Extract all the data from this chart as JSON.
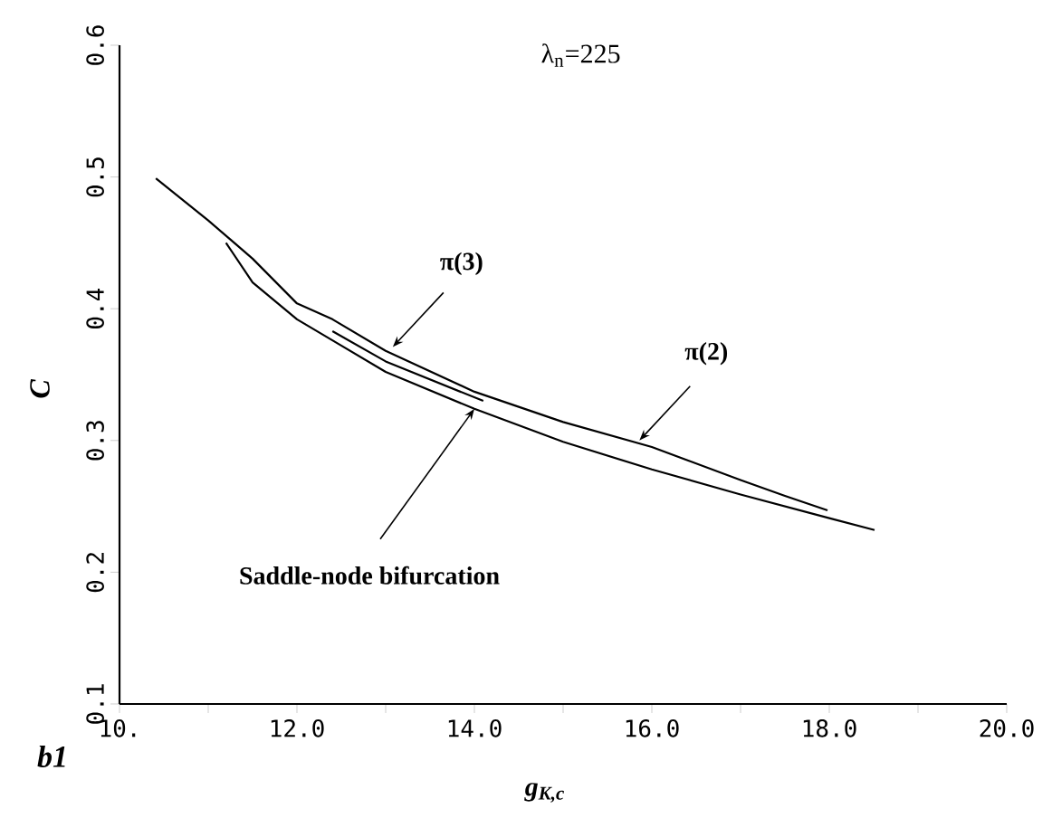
{
  "chart_data": {
    "type": "line",
    "title": "λ$_{n}$=225",
    "xlabel": "g$_{K,c}$",
    "ylabel": "C",
    "xlim": [
      10,
      20
    ],
    "ylim": [
      0.1,
      0.6
    ],
    "xticks": [
      {
        "value": 10,
        "label": "10."
      },
      {
        "value": 11,
        "label": null
      },
      {
        "value": 12,
        "label": "12.0"
      },
      {
        "value": 13,
        "label": null
      },
      {
        "value": 14,
        "label": "14.0"
      },
      {
        "value": 15,
        "label": null
      },
      {
        "value": 16,
        "label": "16.0"
      },
      {
        "value": 17,
        "label": null
      },
      {
        "value": 18,
        "label": "18.0"
      },
      {
        "value": 19,
        "label": null
      },
      {
        "value": 20,
        "label": "20.0"
      }
    ],
    "yticks": [
      0.1,
      0.2,
      0.3,
      0.4,
      0.5,
      0.6
    ],
    "grid": false,
    "marker": "none",
    "line_style": "solid",
    "series": [
      {
        "color": "#000000",
        "x": [
          10.41,
          11.0,
          11.5,
          12.0,
          12.4,
          13.0,
          14.0,
          15.0,
          16.0,
          17.0,
          17.5,
          17.98
        ],
        "values": [
          0.499,
          0.467,
          0.438,
          0.404,
          0.392,
          0.368,
          0.337,
          0.314,
          0.295,
          0.27,
          0.258,
          0.247
        ]
      },
      {
        "color": "#000000",
        "x": [
          11.2,
          11.5,
          12.0,
          12.4,
          13.0,
          14.0,
          15.0,
          16.0,
          17.0,
          18.0,
          18.51
        ],
        "values": [
          0.45,
          0.42,
          0.392,
          0.376,
          0.352,
          0.324,
          0.299,
          0.278,
          0.259,
          0.241,
          0.232
        ]
      },
      {
        "color": "#000000",
        "x": [
          12.4,
          13.0,
          14.1
        ],
        "values": [
          0.383,
          0.36,
          0.33
        ]
      }
    ],
    "annotations": [
      {
        "text": "π(3)",
        "x": 13.08,
        "y": 0.371
      },
      {
        "text": "π(2)",
        "x": 15.86,
        "y": 0.3
      },
      {
        "text": "Saddle-node bifurcation",
        "x": 14.0,
        "y": 0.324
      },
      "b1"
    ]
  }
}
